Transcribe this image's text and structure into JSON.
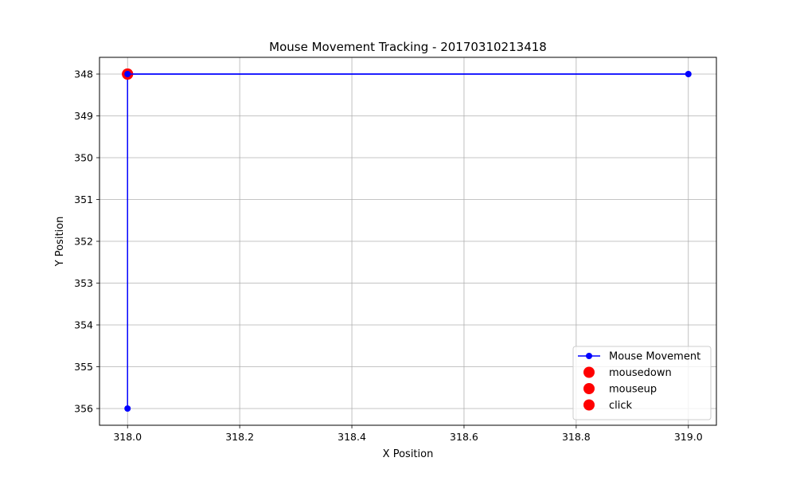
{
  "chart_data": {
    "type": "line",
    "title": "Mouse Movement Tracking - 20170310213418",
    "xlabel": "X Position",
    "ylabel": "Y Position",
    "xlim": [
      317.95,
      319.05
    ],
    "ylim": [
      347.6,
      356.4
    ],
    "y_inverted": true,
    "grid": true,
    "legend_position": "lower-right",
    "x_ticks": [
      318.0,
      318.2,
      318.4,
      318.6,
      318.8,
      319.0
    ],
    "x_tick_labels": [
      "318.0",
      "318.2",
      "318.4",
      "318.6",
      "318.8",
      "319.0"
    ],
    "y_ticks": [
      348,
      349,
      350,
      351,
      352,
      353,
      354,
      355,
      356
    ],
    "y_tick_labels": [
      "348",
      "349",
      "350",
      "351",
      "352",
      "353",
      "354",
      "355",
      "356"
    ],
    "series": [
      {
        "name": "Mouse Movement",
        "kind": "line-marker",
        "color": "#0000ff",
        "points": [
          {
            "x": 318,
            "y": 356
          },
          {
            "x": 318,
            "y": 348
          },
          {
            "x": 319,
            "y": 348
          },
          {
            "x": 318,
            "y": 348
          }
        ]
      },
      {
        "name": "mousedown",
        "kind": "scatter",
        "color": "#ff0000",
        "points": [
          {
            "x": 318,
            "y": 348
          }
        ]
      },
      {
        "name": "mouseup",
        "kind": "scatter",
        "color": "#ff0000",
        "points": [
          {
            "x": 318,
            "y": 348
          }
        ]
      },
      {
        "name": "click",
        "kind": "scatter",
        "color": "#ff0000",
        "points": [
          {
            "x": 318,
            "y": 348
          }
        ]
      }
    ]
  }
}
